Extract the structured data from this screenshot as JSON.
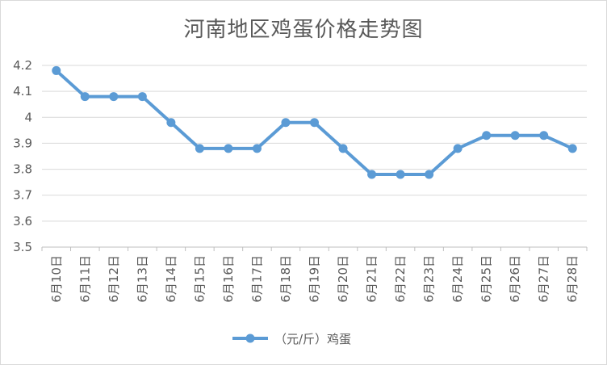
{
  "title": "河南地区鸡蛋价格走势图",
  "chart_data": {
    "type": "line",
    "title": "河南地区鸡蛋价格走势图",
    "xlabel": "",
    "ylabel": "",
    "categories": [
      "6月10日",
      "6月11日",
      "6月12日",
      "6月13日",
      "6月14日",
      "6月15日",
      "6月16日",
      "6月17日",
      "6月18日",
      "6月19日",
      "6月20日",
      "6月21日",
      "6月22日",
      "6月23日",
      "6月24日",
      "6月25日",
      "6月26日",
      "6月27日",
      "6月28日"
    ],
    "series": [
      {
        "name": "（元/斤）鸡蛋",
        "color": "#5b9bd5",
        "values": [
          4.18,
          4.08,
          4.08,
          4.08,
          3.98,
          3.88,
          3.88,
          3.88,
          3.98,
          3.98,
          3.88,
          3.78,
          3.78,
          3.78,
          3.88,
          3.93,
          3.93,
          3.93,
          3.88
        ]
      }
    ],
    "ylim": [
      3.5,
      4.2
    ],
    "yticks": [
      "3.5",
      "3.6",
      "3.7",
      "3.8",
      "3.9",
      "4",
      "4.1",
      "4.2"
    ],
    "ytick_values": [
      3.5,
      3.6,
      3.7,
      3.8,
      3.9,
      4.0,
      4.1,
      4.2
    ],
    "grid": true,
    "legend": "bottom"
  }
}
